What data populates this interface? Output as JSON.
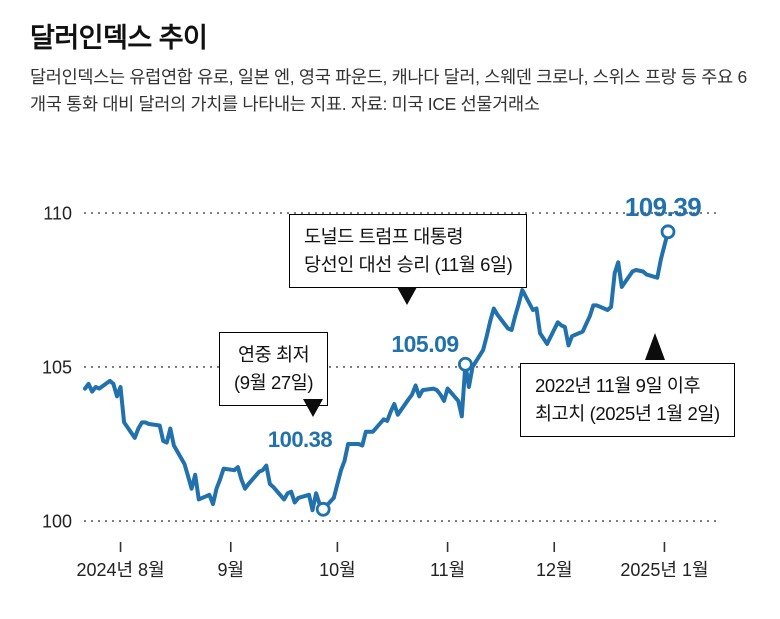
{
  "header": {
    "title": "달러인덱스 추이",
    "description": "달러인덱스는 유럽연합 유로, 일본 엔, 영국 파운드, 캐나다 달러, 스웨덴 크로나, 스위스 프랑 등 주요 6개국 통화 대비 달러의 가치를 나타내는 지표. 자료: 미국 ICE 선물거래소"
  },
  "chart_data": {
    "type": "line",
    "title": "달러인덱스 추이",
    "ylim": [
      100,
      110
    ],
    "yticks": [
      110,
      105,
      100
    ],
    "grid": "horizontal-dotted",
    "legend": "none",
    "line_color": "#2171ad",
    "x_range": [
      "2024-07-22",
      "2025-01-02"
    ],
    "xticks": [
      {
        "date": "2024-08-01",
        "label": "2024년 8월"
      },
      {
        "date": "2024-09-01",
        "label": "9월"
      },
      {
        "date": "2024-10-01",
        "label": "10월"
      },
      {
        "date": "2024-11-01",
        "label": "11월"
      },
      {
        "date": "2024-12-01",
        "label": "12월"
      },
      {
        "date": "2025-01-01",
        "label": "2025년 1월"
      }
    ],
    "series": [
      {
        "name": "달러인덱스",
        "points": [
          [
            "2024-07-22",
            104.3
          ],
          [
            "2024-07-23",
            104.45
          ],
          [
            "2024-07-24",
            104.2
          ],
          [
            "2024-07-25",
            104.35
          ],
          [
            "2024-07-26",
            104.3
          ],
          [
            "2024-07-29",
            104.55
          ],
          [
            "2024-07-30",
            104.45
          ],
          [
            "2024-07-31",
            104.05
          ],
          [
            "2024-08-01",
            104.35
          ],
          [
            "2024-08-02",
            103.2
          ],
          [
            "2024-08-05",
            102.7
          ],
          [
            "2024-08-06",
            103.0
          ],
          [
            "2024-08-07",
            103.2
          ],
          [
            "2024-08-08",
            103.2
          ],
          [
            "2024-08-09",
            103.15
          ],
          [
            "2024-08-12",
            103.1
          ],
          [
            "2024-08-13",
            102.6
          ],
          [
            "2024-08-14",
            102.55
          ],
          [
            "2024-08-15",
            103.0
          ],
          [
            "2024-08-16",
            102.45
          ],
          [
            "2024-08-19",
            101.85
          ],
          [
            "2024-08-20",
            101.45
          ],
          [
            "2024-08-21",
            101.05
          ],
          [
            "2024-08-22",
            101.5
          ],
          [
            "2024-08-23",
            100.7
          ],
          [
            "2024-08-26",
            100.85
          ],
          [
            "2024-08-27",
            100.55
          ],
          [
            "2024-08-28",
            101.05
          ],
          [
            "2024-08-29",
            101.35
          ],
          [
            "2024-08-30",
            101.7
          ],
          [
            "2024-09-02",
            101.65
          ],
          [
            "2024-09-03",
            101.75
          ],
          [
            "2024-09-04",
            101.35
          ],
          [
            "2024-09-05",
            101.05
          ],
          [
            "2024-09-06",
            101.2
          ],
          [
            "2024-09-09",
            101.6
          ],
          [
            "2024-09-10",
            101.65
          ],
          [
            "2024-09-11",
            101.8
          ],
          [
            "2024-09-12",
            101.2
          ],
          [
            "2024-09-13",
            101.1
          ],
          [
            "2024-09-16",
            100.7
          ],
          [
            "2024-09-17",
            100.9
          ],
          [
            "2024-09-18",
            100.95
          ],
          [
            "2024-09-19",
            100.6
          ],
          [
            "2024-09-20",
            100.75
          ],
          [
            "2024-09-23",
            100.85
          ],
          [
            "2024-09-24",
            100.35
          ],
          [
            "2024-09-25",
            100.9
          ],
          [
            "2024-09-26",
            100.55
          ],
          [
            "2024-09-27",
            100.38
          ],
          [
            "2024-09-30",
            100.75
          ],
          [
            "2024-10-01",
            101.2
          ],
          [
            "2024-10-02",
            101.65
          ],
          [
            "2024-10-03",
            101.95
          ],
          [
            "2024-10-04",
            102.5
          ],
          [
            "2024-10-07",
            102.5
          ],
          [
            "2024-10-08",
            102.45
          ],
          [
            "2024-10-09",
            102.9
          ],
          [
            "2024-10-10",
            102.9
          ],
          [
            "2024-10-11",
            102.9
          ],
          [
            "2024-10-14",
            103.3
          ],
          [
            "2024-10-15",
            103.25
          ],
          [
            "2024-10-16",
            103.55
          ],
          [
            "2024-10-17",
            103.8
          ],
          [
            "2024-10-18",
            103.45
          ],
          [
            "2024-10-21",
            103.95
          ],
          [
            "2024-10-22",
            104.1
          ],
          [
            "2024-10-23",
            104.4
          ],
          [
            "2024-10-24",
            104.05
          ],
          [
            "2024-10-25",
            104.25
          ],
          [
            "2024-10-28",
            104.3
          ],
          [
            "2024-10-29",
            104.25
          ],
          [
            "2024-10-30",
            104.1
          ],
          [
            "2024-10-31",
            103.9
          ],
          [
            "2024-11-01",
            104.3
          ],
          [
            "2024-11-04",
            103.9
          ],
          [
            "2024-11-05",
            103.4
          ],
          [
            "2024-11-06",
            105.09
          ],
          [
            "2024-11-07",
            104.35
          ],
          [
            "2024-11-08",
            105.0
          ],
          [
            "2024-11-11",
            105.55
          ],
          [
            "2024-11-12",
            106.0
          ],
          [
            "2024-11-13",
            106.5
          ],
          [
            "2024-11-14",
            106.9
          ],
          [
            "2024-11-15",
            106.7
          ],
          [
            "2024-11-18",
            106.25
          ],
          [
            "2024-11-19",
            106.2
          ],
          [
            "2024-11-20",
            106.65
          ],
          [
            "2024-11-21",
            107.05
          ],
          [
            "2024-11-22",
            107.5
          ],
          [
            "2024-11-25",
            106.85
          ],
          [
            "2024-11-26",
            106.9
          ],
          [
            "2024-11-27",
            106.1
          ],
          [
            "2024-11-29",
            105.75
          ],
          [
            "2024-12-02",
            106.45
          ],
          [
            "2024-12-03",
            106.35
          ],
          [
            "2024-12-04",
            106.3
          ],
          [
            "2024-12-05",
            105.7
          ],
          [
            "2024-12-06",
            106.0
          ],
          [
            "2024-12-09",
            106.15
          ],
          [
            "2024-12-10",
            106.4
          ],
          [
            "2024-12-11",
            106.65
          ],
          [
            "2024-12-12",
            107.0
          ],
          [
            "2024-12-13",
            107.0
          ],
          [
            "2024-12-16",
            106.85
          ],
          [
            "2024-12-17",
            106.95
          ],
          [
            "2024-12-18",
            108.05
          ],
          [
            "2024-12-19",
            108.4
          ],
          [
            "2024-12-20",
            107.6
          ],
          [
            "2024-12-23",
            108.1
          ],
          [
            "2024-12-24",
            108.15
          ],
          [
            "2024-12-26",
            108.1
          ],
          [
            "2024-12-27",
            108.0
          ],
          [
            "2024-12-30",
            107.9
          ],
          [
            "2024-12-31",
            108.5
          ],
          [
            "2025-01-02",
            109.39
          ]
        ]
      }
    ],
    "annotations": {
      "year_low": {
        "line1": "연중 최저",
        "line2": "(9월 27일)",
        "date": "2024-09-27",
        "value": 100.38,
        "value_label": "100.38",
        "marker": true
      },
      "trump_win": {
        "line1": "도널드 트럼프 대통령",
        "line2": "당선인 대선 승리 (11월 6일)",
        "date": "2024-11-06",
        "value": 105.09,
        "value_label": "105.09",
        "marker": true
      },
      "record_high": {
        "line1": "2022년 11월 9일 이후",
        "line2": "최고치 (2025년 1월 2일)",
        "date": "2025-01-02",
        "value": 109.39,
        "value_label": "109.39",
        "marker": true
      }
    }
  }
}
